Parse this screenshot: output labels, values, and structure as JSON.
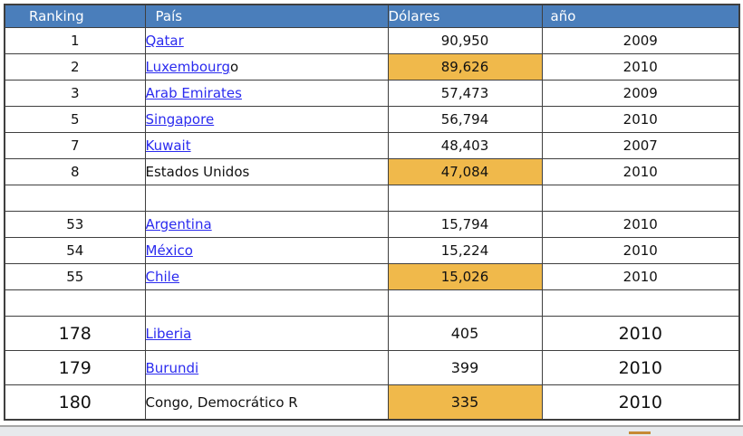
{
  "colors": {
    "header-bg": "#4A7EBB",
    "header-text": "#FFFFFF",
    "highlight": "#F0B94B",
    "link": "#2B2BEF",
    "grid": "#3F3F3F",
    "bottom-bar-bg": "#E7E9EC",
    "bottom-bar-line": "#A6A6A6",
    "bottom-chip": "#C68A35"
  },
  "table": {
    "headers": [
      "Ranking",
      "País",
      "Dólares",
      "año"
    ],
    "rows": [
      {
        "rank": "1",
        "country": "Qatar",
        "link": true,
        "dollars": "90,950",
        "highlight": false,
        "year": "2009"
      },
      {
        "rank": "2",
        "country": "Luxembourg",
        "suffix": "o",
        "link": true,
        "dollars": "89,626",
        "highlight": true,
        "year": "2010"
      },
      {
        "rank": "3",
        "country": "Arab Emirates",
        "link": true,
        "dollars": "57,473",
        "highlight": false,
        "year": "2009"
      },
      {
        "rank": "5",
        "country": "Singapore",
        "link": true,
        "dollars": "56,794",
        "highlight": false,
        "year": "2010"
      },
      {
        "rank": "7",
        "country": "Kuwait",
        "link": true,
        "dollars": "48,403",
        "highlight": false,
        "year": "2007"
      },
      {
        "rank": "8",
        "country": "Estados Unidos",
        "link": false,
        "dollars": "47,084",
        "highlight": true,
        "year": "2010"
      },
      {
        "spacer": true
      },
      {
        "rank": "53",
        "country": "Argentina",
        "link": true,
        "dollars": "15,794",
        "highlight": false,
        "year": "2010"
      },
      {
        "rank": "54",
        "country": "México",
        "link": true,
        "dollars": "15,224",
        "highlight": false,
        "year": "2010"
      },
      {
        "rank": "55",
        "country": "Chile",
        "link": true,
        "dollars": "15,026",
        "highlight": true,
        "year": "2010"
      },
      {
        "spacer": true
      },
      {
        "rank": "178",
        "country": "Liberia",
        "link": true,
        "dollars": "405",
        "highlight": false,
        "year": "2010",
        "big": true
      },
      {
        "rank": "179",
        "country": "Burundi",
        "link": true,
        "dollars": "399",
        "highlight": false,
        "year": "2010",
        "big": true
      },
      {
        "rank": "180",
        "country": "Congo, Democrático R",
        "link": false,
        "dollars": "335",
        "highlight": true,
        "year": "2010",
        "big": true
      }
    ]
  },
  "chart_data": {
    "type": "table",
    "title": "",
    "columns": [
      "Ranking",
      "País",
      "Dólares",
      "año"
    ],
    "rows": [
      [
        1,
        "Qatar",
        90950,
        2009
      ],
      [
        2,
        "Luxembourgo",
        89626,
        2010
      ],
      [
        3,
        "Arab Emirates",
        57473,
        2009
      ],
      [
        5,
        "Singapore",
        56794,
        2010
      ],
      [
        7,
        "Kuwait",
        48403,
        2007
      ],
      [
        8,
        "Estados Unidos",
        47084,
        2010
      ],
      [
        53,
        "Argentina",
        15794,
        2010
      ],
      [
        54,
        "México",
        15224,
        2010
      ],
      [
        55,
        "Chile",
        15026,
        2010
      ],
      [
        178,
        "Liberia",
        405,
        2010
      ],
      [
        179,
        "Burundi",
        399,
        2010
      ],
      [
        180,
        "Congo, Democrático R",
        335,
        2010
      ]
    ],
    "highlighted_dollars_values": [
      89626,
      47084,
      15026,
      335
    ],
    "hyperlinked_countries": [
      "Qatar",
      "Luxembourg",
      "Arab Emirates",
      "Singapore",
      "Kuwait",
      "Argentina",
      "México",
      "Chile",
      "Liberia",
      "Burundi"
    ]
  }
}
